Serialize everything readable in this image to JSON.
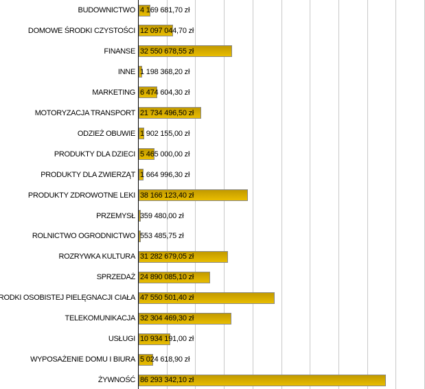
{
  "chart_data": {
    "type": "bar",
    "orientation": "horizontal",
    "title": "",
    "xlabel": "",
    "ylabel": "",
    "xlim": [
      0,
      100000000
    ],
    "grid_step": 10000000,
    "grid": true,
    "bar_color": "#dcb000",
    "categories": [
      "BUDOWNICTWO",
      "DOMOWE ŚRODKI CZYSTOŚCI",
      "FINANSE",
      "INNE",
      "MARKETING",
      "MOTORYZACJA TRANSPORT",
      "ODZIEŻ OBUWIE",
      "PRODUKTY DLA DZIECI",
      "PRODUKTY DLA ZWIERZĄT",
      "PRODUKTY ZDROWOTNE LEKI",
      "PRZEMYSŁ",
      "ROLNICTWO OGRODNICTWO",
      "ROZRYWKA KULTURA",
      "SPRZEDAŻ",
      "ŚRODKI OSOBISTEJ PIELĘGNACJI CIAŁA",
      "TELEKOMUNIKACJA",
      "USŁUGI",
      "WYPOSAŻENIE DOMU I BIURA",
      "ŻYWNOŚĆ"
    ],
    "values": [
      4169681.7,
      12097044.7,
      32550678.55,
      1198368.2,
      6474604.3,
      21734496.5,
      1902155.0,
      5465000.0,
      1664996.3,
      38166123.4,
      359480.0,
      553485.75,
      31282679.05,
      24890085.1,
      47550501.4,
      32304469.3,
      10934191.0,
      5024618.9,
      86293342.1
    ],
    "labels": [
      "4 169 681,70 zł",
      "12 097 044,70 zł",
      "32 550 678,55 zł",
      "1 198 368,20 zł",
      "6 474 604,30 zł",
      "21 734 496,50 zł",
      "1 902 155,00 zł",
      "5 465 000,00 zł",
      "1 664 996,30 zł",
      "38 166 123,40 zł",
      "359 480,00 zł",
      "553 485,75 zł",
      "31 282 679,05 zł",
      "24 890 085,10 zł",
      "47 550 501,40 zł",
      "32 304 469,30 zł",
      "10 934 191,00 zł",
      "5 024 618,90 zł",
      "86 293 342,10 zł"
    ]
  }
}
